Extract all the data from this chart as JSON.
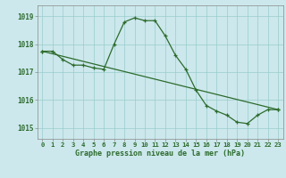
{
  "title": "Graphe pression niveau de la mer (hPa)",
  "background_color": "#cce8ec",
  "grid_color": "#99cccc",
  "line_color": "#2d6b2d",
  "ylabel_values": [
    1015,
    1016,
    1017,
    1018,
    1019
  ],
  "xlim": [
    -0.5,
    23.5
  ],
  "ylim": [
    1014.6,
    1019.4
  ],
  "series1_x": [
    0,
    1,
    2,
    3,
    4,
    5,
    6,
    7,
    8,
    9,
    10,
    11,
    12,
    13,
    14,
    15,
    16,
    17,
    18,
    19,
    20,
    21,
    22,
    23
  ],
  "series1_y": [
    1017.75,
    1017.75,
    1017.45,
    1017.25,
    1017.25,
    1017.15,
    1017.1,
    1018.0,
    1018.8,
    1018.95,
    1018.85,
    1018.85,
    1018.3,
    1017.6,
    1017.1,
    1016.35,
    1015.8,
    1015.6,
    1015.45,
    1015.2,
    1015.15,
    1015.45,
    1015.65,
    1015.65
  ],
  "series2_x": [
    0,
    23
  ],
  "series2_y": [
    1017.75,
    1015.65
  ],
  "xlabel_fontsize": 6.0,
  "tick_fontsize": 5.2
}
